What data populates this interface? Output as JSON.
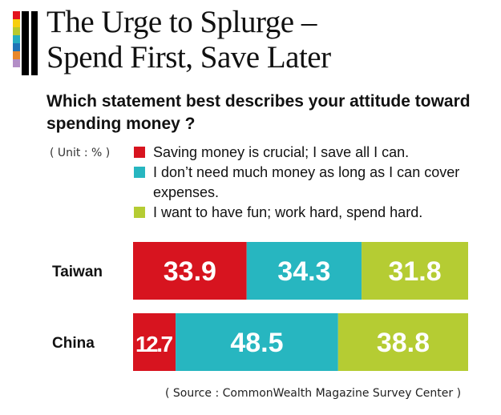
{
  "title_line1": "The Urge to Splurge –",
  "title_line2": "Spend First, Save Later",
  "question": "Which statement best describes your attitude toward spending money ?",
  "unit": "( Unit : % )",
  "source": "( Source : CommonWealth Magazine Survey Center )",
  "stripe_colors": [
    "#e3131e",
    "#f7ce0e",
    "#b8c92d",
    "#25adc0",
    "#1f73b7",
    "#e8872a",
    "#b38ec6",
    "#ffffff"
  ],
  "chart_data": {
    "type": "bar",
    "orientation": "horizontal",
    "stacked": true,
    "categories": [
      "Taiwan",
      "China"
    ],
    "series": [
      {
        "name": "Saving money is crucial; I save all I can.",
        "color": "#d7141f",
        "values": [
          33.9,
          12.7
        ]
      },
      {
        "name": "I don’t need much money as long as I can cover expenses.",
        "color": "#27b6c0",
        "values": [
          34.3,
          48.5
        ]
      },
      {
        "name": "I want to have fun; work hard, spend hard.",
        "color": "#b5cc33",
        "values": [
          31.8,
          38.8
        ]
      }
    ],
    "xlim": [
      0,
      100
    ],
    "legend_position": "top",
    "grid": false
  }
}
